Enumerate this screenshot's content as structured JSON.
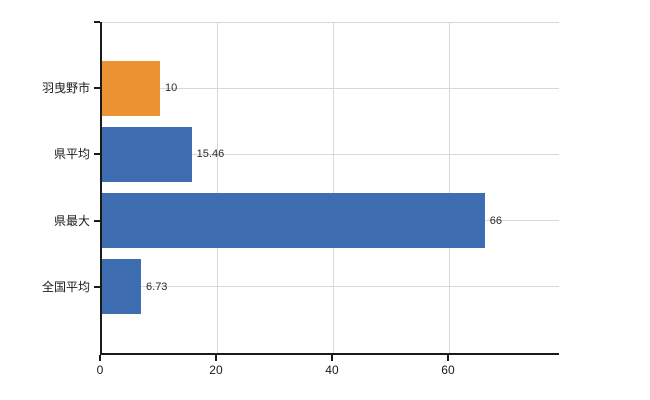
{
  "chart_data": {
    "type": "bar",
    "orientation": "horizontal",
    "title": "",
    "categories": [
      "羽曳野市",
      "県平均",
      "県最大",
      "全国平均"
    ],
    "values": [
      10,
      15.46,
      66,
      6.73
    ],
    "value_labels": [
      "10",
      "15.46",
      "66",
      "6.73"
    ],
    "bar_colors": [
      "#ec9333",
      "#3e6eb1",
      "#3e6eb1",
      "#3e6eb1"
    ],
    "x_ticks": [
      0,
      20,
      40,
      60
    ],
    "x_tick_labels": [
      "0",
      "20",
      "40",
      "60"
    ],
    "xlim": [
      0,
      78.8
    ],
    "grid": true,
    "legend_position": "none",
    "colors": {
      "highlight_bar": "#ec9333",
      "default_bar": "#3e6eb1",
      "gridline": "#d8d8d8",
      "axis": "#1a1a1a",
      "background": "#ffffff"
    }
  }
}
